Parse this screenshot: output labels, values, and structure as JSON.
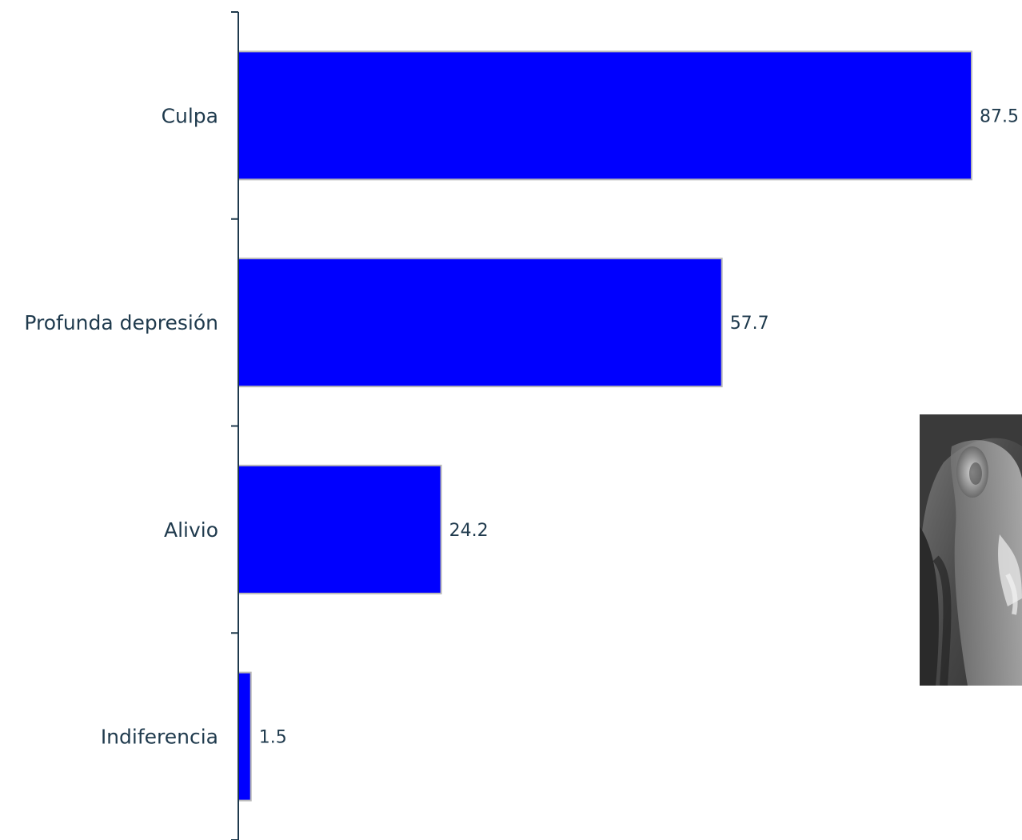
{
  "chart_data": {
    "type": "bar",
    "orientation": "horizontal",
    "categories": [
      "Culpa",
      "Profunda depresión",
      "Alivio",
      "Indiferencia"
    ],
    "values": [
      87.5,
      57.7,
      24.2,
      1.5
    ],
    "value_labels": [
      "87.5",
      "57.7",
      "24.2",
      "1.5"
    ],
    "title": "",
    "xlabel": "",
    "ylabel": "",
    "xlim": [
      0,
      100
    ],
    "grid": false,
    "legend": "none",
    "bar_color": "#0000ff"
  },
  "photo": {
    "icon": "grayscale-portrait-photo",
    "description_visible": false
  }
}
